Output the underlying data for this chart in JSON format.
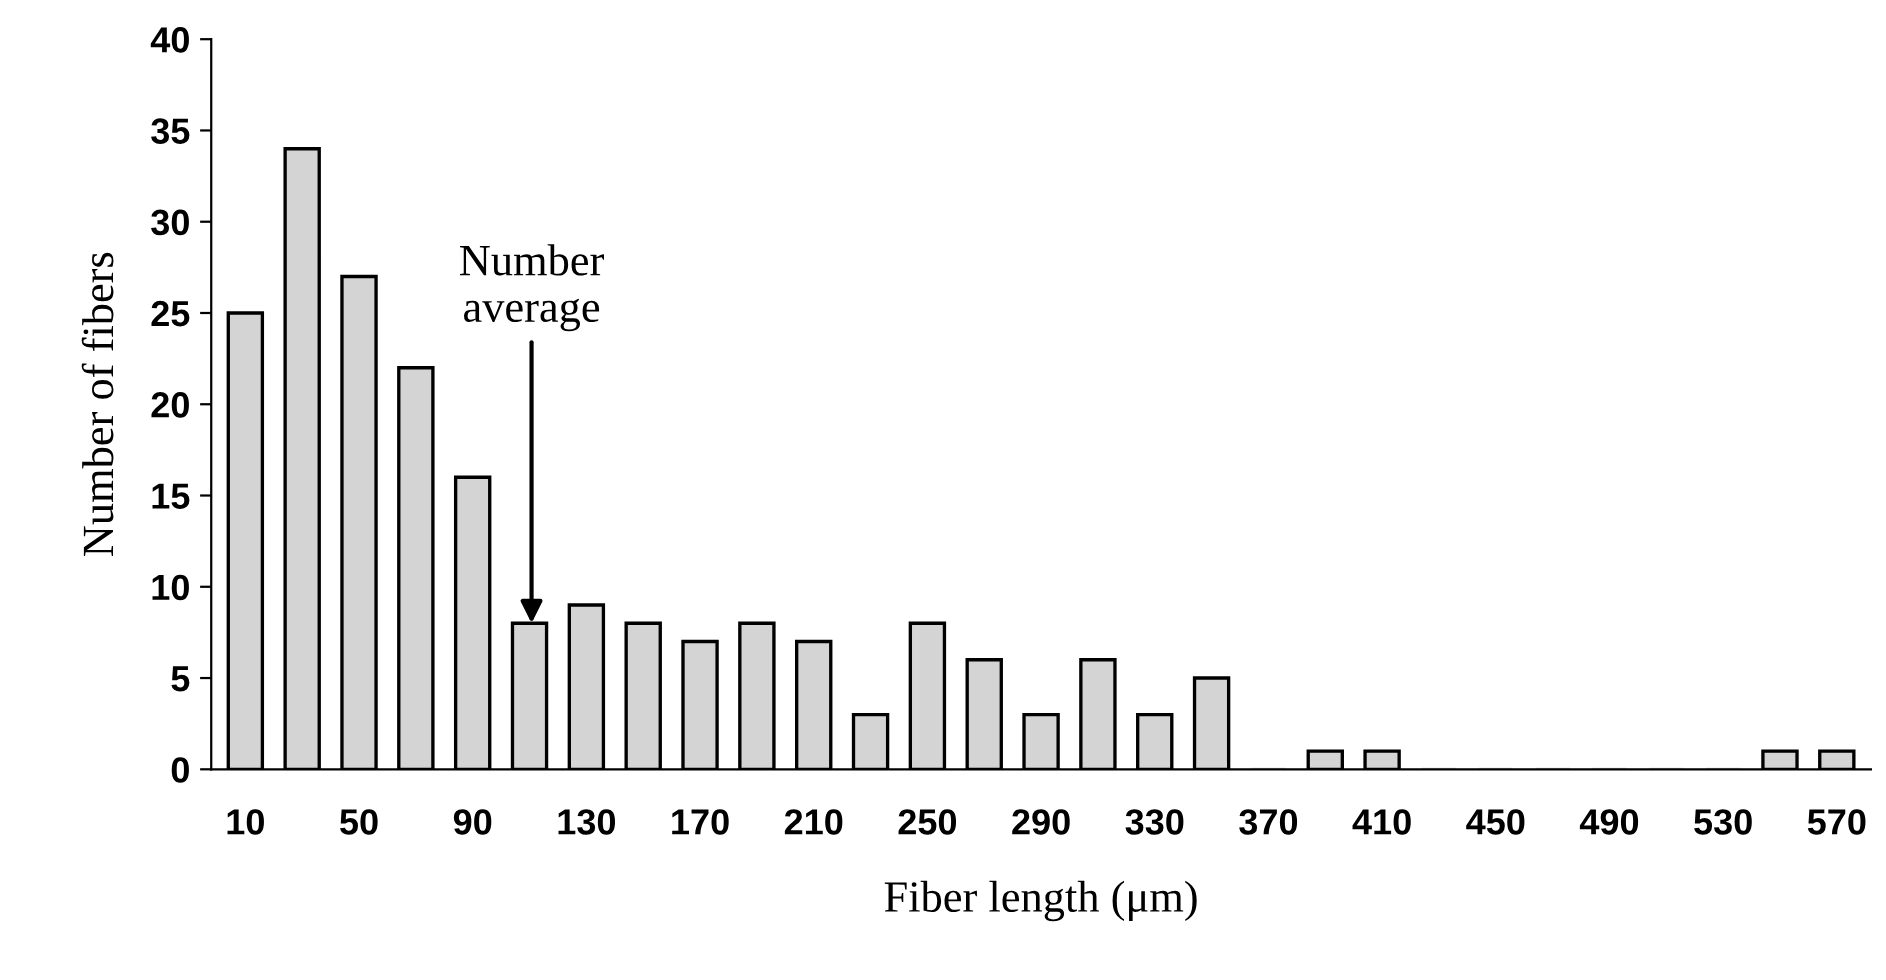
{
  "chart_data": {
    "type": "bar",
    "xlabel": "Fiber length (μm)",
    "ylabel": "Number of fibers",
    "categories": [
      "10",
      null,
      "50",
      null,
      "90",
      null,
      "130",
      null,
      "170",
      null,
      "210",
      null,
      "250",
      null,
      "290",
      null,
      "330",
      null,
      "370",
      null,
      "410",
      null,
      "450",
      null,
      "490",
      null,
      "530",
      null,
      "570"
    ],
    "values": [
      25,
      34,
      27,
      22,
      16,
      8,
      9,
      8,
      7,
      8,
      7,
      3,
      8,
      6,
      3,
      6,
      3,
      5,
      0,
      1,
      1,
      0,
      0,
      0,
      0,
      0,
      0,
      1,
      1
    ],
    "color": "#d4d4d4",
    "ylim": [
      0,
      40
    ],
    "yticks": [
      0,
      5,
      10,
      15,
      20,
      25,
      30,
      35,
      40
    ],
    "grid": false,
    "annotations": [
      {
        "text": "Number\naverage",
        "y": 8
      }
    ]
  }
}
